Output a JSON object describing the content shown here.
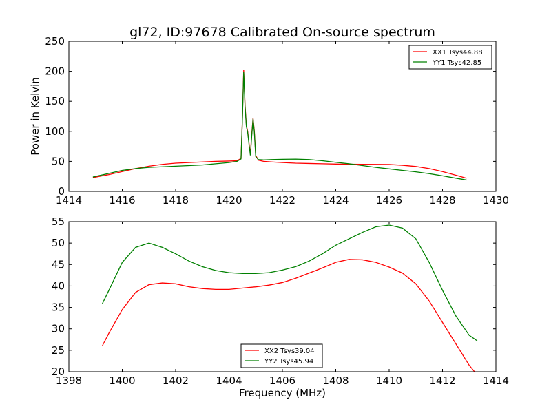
{
  "figure": {
    "title": "gl72, ID:97678 Calibrated On-source spectrum"
  },
  "chart_data": [
    {
      "type": "line",
      "title": "gl72, ID:97678 Calibrated On-source spectrum",
      "xlabel": "",
      "ylabel": "Power in Kelvin",
      "xlim": [
        1414,
        1430
      ],
      "ylim": [
        0,
        250
      ],
      "xticks": [
        "1414",
        "1416",
        "1418",
        "1420",
        "1422",
        "1424",
        "1426",
        "1428",
        "1430"
      ],
      "yticks": [
        "0",
        "50",
        "100",
        "150",
        "200",
        "250"
      ],
      "grid": false,
      "legend": "top-right",
      "series": [
        {
          "name": "XX1 Tsys44.88",
          "color": "#ff0000",
          "x": [
            1414.9,
            1415.5,
            1416,
            1416.5,
            1417,
            1417.5,
            1418,
            1418.5,
            1419,
            1419.5,
            1420,
            1420.3,
            1420.45,
            1420.5,
            1420.55,
            1420.6,
            1420.65,
            1420.7,
            1420.75,
            1420.8,
            1420.85,
            1420.9,
            1420.95,
            1421.0,
            1421.1,
            1421.3,
            1421.6,
            1422,
            1422.5,
            1423,
            1423.5,
            1424,
            1424.5,
            1425,
            1425.5,
            1426,
            1426.5,
            1427,
            1427.5,
            1428,
            1428.5,
            1428.9
          ],
          "values": [
            23,
            28,
            33,
            38,
            42,
            45,
            47,
            48,
            49,
            50,
            50.5,
            51,
            55,
            120,
            203,
            145,
            110,
            100,
            80,
            62,
            95,
            122,
            100,
            60,
            52,
            50,
            49,
            48,
            47,
            46.5,
            46,
            45.5,
            45.3,
            45.2,
            45,
            44.8,
            43.5,
            41.5,
            38,
            33,
            27,
            22
          ]
        },
        {
          "name": "YY1 Tsys42.85",
          "color": "#008000",
          "x": [
            1414.9,
            1415.5,
            1416,
            1416.5,
            1417,
            1417.5,
            1418,
            1418.5,
            1419,
            1419.5,
            1420,
            1420.3,
            1420.45,
            1420.5,
            1420.55,
            1420.6,
            1420.65,
            1420.7,
            1420.75,
            1420.8,
            1420.85,
            1420.9,
            1420.95,
            1421.0,
            1421.1,
            1421.3,
            1421.6,
            1422,
            1422.5,
            1423,
            1423.5,
            1424,
            1424.5,
            1425,
            1425.5,
            1426,
            1426.5,
            1427,
            1427.5,
            1428,
            1428.5,
            1428.9
          ],
          "values": [
            24,
            30,
            35,
            38,
            40,
            41,
            42,
            43,
            44,
            46,
            48,
            50,
            54,
            118,
            199,
            142,
            108,
            98,
            78,
            60,
            92,
            121,
            98,
            58,
            53,
            52.5,
            53,
            53.5,
            53.8,
            53,
            51,
            48.5,
            46,
            43,
            40,
            37.5,
            35,
            32.5,
            29.5,
            26,
            22,
            19
          ]
        }
      ]
    },
    {
      "type": "line",
      "title": "",
      "xlabel": "Frequency (MHz)",
      "ylabel": "",
      "xlim": [
        1398,
        1414
      ],
      "ylim": [
        20,
        55
      ],
      "xticks": [
        "1398",
        "1400",
        "1402",
        "1404",
        "1406",
        "1408",
        "1410",
        "1412",
        "1414"
      ],
      "yticks": [
        "20",
        "25",
        "30",
        "35",
        "40",
        "45",
        "50",
        "55"
      ],
      "grid": false,
      "legend": "bottom-center",
      "series": [
        {
          "name": "XX2 Tsys39.04",
          "color": "#ff0000",
          "x": [
            1399.25,
            1399.5,
            1400,
            1400.5,
            1401,
            1401.5,
            1402,
            1402.5,
            1403,
            1403.5,
            1404,
            1404.5,
            1405,
            1405.5,
            1406,
            1406.5,
            1407,
            1407.5,
            1408,
            1408.5,
            1409,
            1409.5,
            1410,
            1410.5,
            1411,
            1411.5,
            1412,
            1412.5,
            1413,
            1413.2
          ],
          "values": [
            26,
            29,
            34.5,
            38.5,
            40.3,
            40.7,
            40.5,
            39.8,
            39.4,
            39.2,
            39.2,
            39.5,
            39.8,
            40.2,
            40.8,
            41.8,
            43,
            44.2,
            45.5,
            46.2,
            46.1,
            45.5,
            44.4,
            43,
            40.5,
            36.5,
            31.5,
            26.5,
            21.5,
            20
          ]
        },
        {
          "name": "YY2 Tsys45.94",
          "color": "#008000",
          "x": [
            1399.25,
            1399.5,
            1400,
            1400.5,
            1401,
            1401.5,
            1402,
            1402.5,
            1403,
            1403.5,
            1404,
            1404.5,
            1405,
            1405.5,
            1406,
            1406.5,
            1407,
            1407.5,
            1408,
            1408.5,
            1409,
            1409.5,
            1410,
            1410.5,
            1411,
            1411.5,
            1412,
            1412.5,
            1413,
            1413.3
          ],
          "values": [
            35.8,
            39,
            45.5,
            49,
            50,
            49,
            47.5,
            45.8,
            44.5,
            43.6,
            43.1,
            42.9,
            42.9,
            43.1,
            43.7,
            44.5,
            45.8,
            47.5,
            49.5,
            51,
            52.5,
            53.8,
            54.2,
            53.5,
            51,
            45.5,
            39,
            33,
            28.5,
            27.2
          ]
        }
      ]
    }
  ]
}
